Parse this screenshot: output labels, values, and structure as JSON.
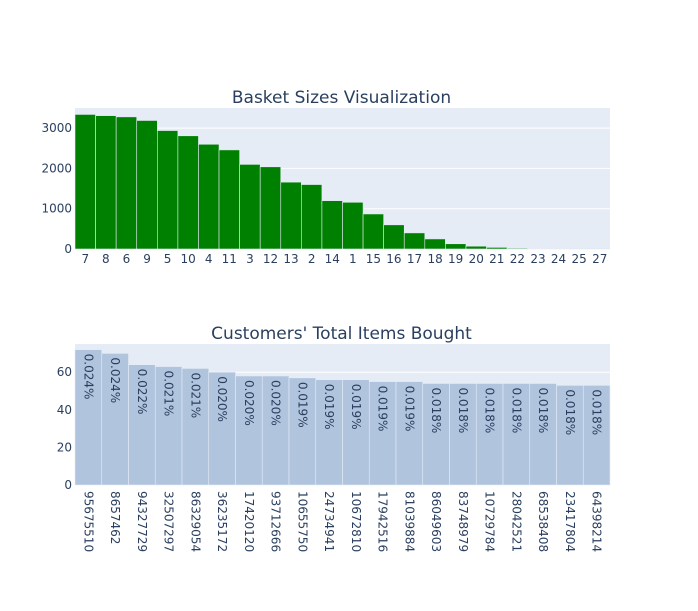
{
  "chart_data": [
    {
      "type": "bar",
      "title": "Basket Sizes Visualization",
      "xlabel": "",
      "ylabel": "",
      "categories": [
        "7",
        "8",
        "6",
        "9",
        "5",
        "10",
        "4",
        "11",
        "3",
        "12",
        "13",
        "2",
        "14",
        "1",
        "15",
        "16",
        "17",
        "18",
        "19",
        "20",
        "21",
        "22",
        "23",
        "24",
        "25",
        "27"
      ],
      "values": [
        3340,
        3310,
        3280,
        3190,
        2940,
        2810,
        2600,
        2460,
        2100,
        2040,
        1660,
        1600,
        1200,
        1160,
        870,
        600,
        400,
        250,
        130,
        70,
        40,
        20,
        8,
        5,
        3,
        2
      ],
      "ylim": [
        0,
        3500
      ],
      "yticks": [
        0,
        1000,
        2000,
        3000
      ],
      "ytick_labels": [
        "0",
        "1000",
        "2000",
        "3000"
      ],
      "bar_color": "#008000",
      "plot_bg": "#e5ecf6",
      "grid": true
    },
    {
      "type": "bar",
      "title": "Customers' Total Items Bought",
      "xlabel": "",
      "ylabel": "",
      "categories": [
        "95675510",
        "8657462",
        "94327729",
        "32507297",
        "86329054",
        "36235172",
        "17420120",
        "93712666",
        "10655750",
        "24734941",
        "10672810",
        "17942516",
        "81039884",
        "86049603",
        "83748979",
        "10729784",
        "28042521",
        "68538408",
        "23417804",
        "64398214"
      ],
      "values": [
        72,
        70,
        64,
        63,
        62,
        60,
        58,
        58,
        57,
        56,
        56,
        55,
        55,
        54,
        54,
        54,
        54,
        54,
        53,
        53
      ],
      "data_labels": [
        "0.024%",
        "0.024%",
        "0.022%",
        "0.021%",
        "0.021%",
        "0.020%",
        "0.020%",
        "0.020%",
        "0.019%",
        "0.019%",
        "0.019%",
        "0.019%",
        "0.019%",
        "0.018%",
        "0.018%",
        "0.018%",
        "0.018%",
        "0.018%",
        "0.018%",
        "0.018%"
      ],
      "ylim": [
        0,
        75
      ],
      "yticks": [
        0,
        20,
        40,
        60
      ],
      "ytick_labels": [
        "0",
        "20",
        "40",
        "60"
      ],
      "bar_color": "#b0c4de",
      "plot_bg": "#e5ecf6",
      "grid": true
    }
  ],
  "colors": {
    "text": "#2a3f5f",
    "grid": "#ffffff",
    "bar_outline": "#e5ecf6"
  }
}
